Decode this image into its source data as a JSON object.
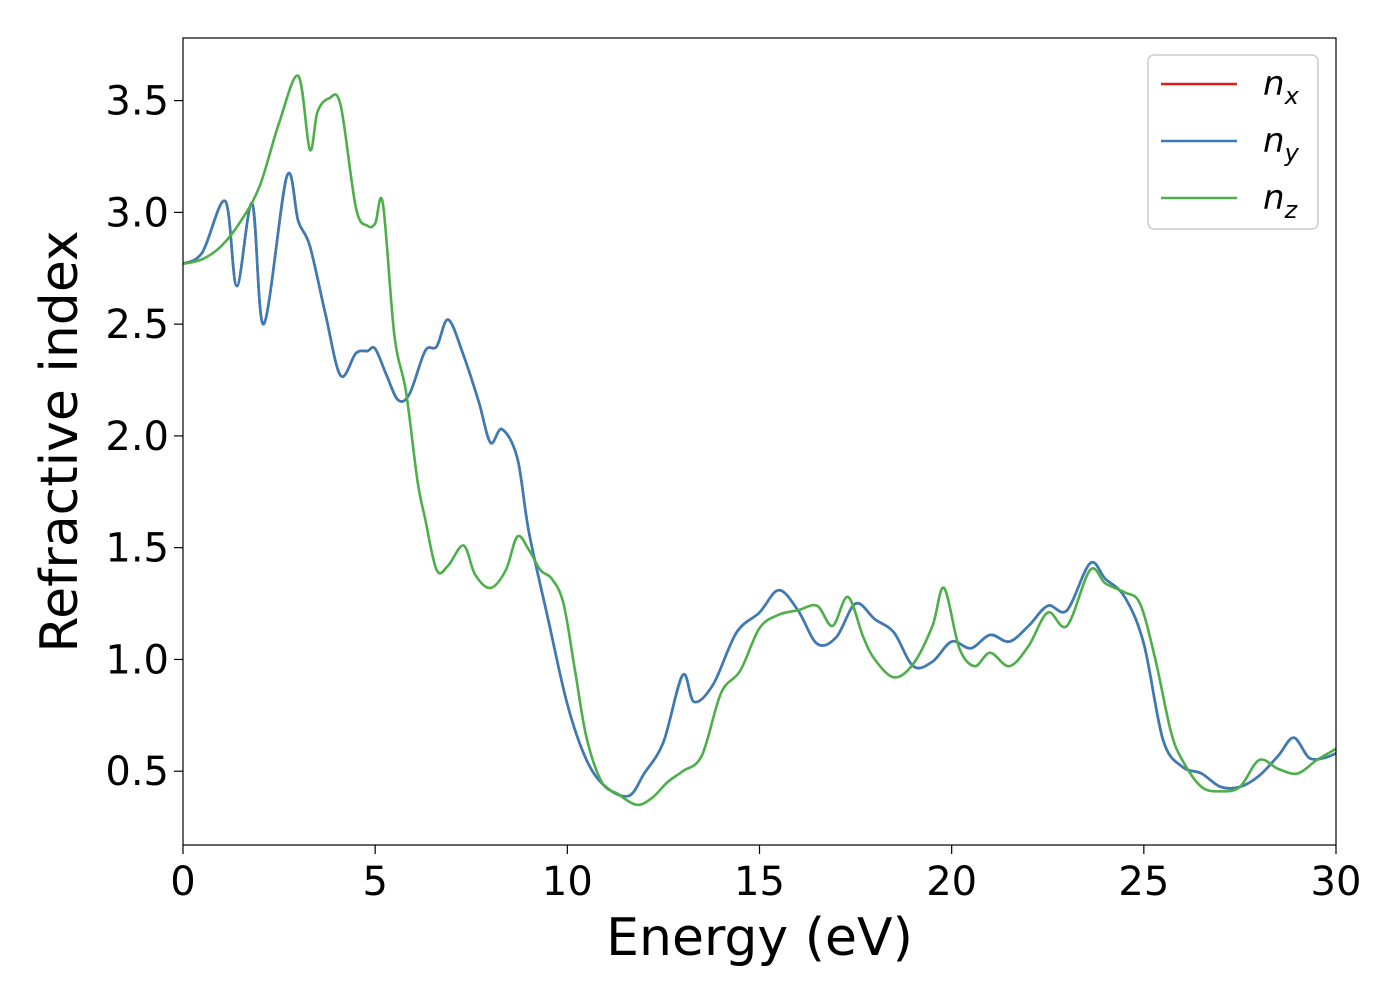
{
  "chart_data": {
    "type": "line",
    "title": "",
    "xlabel": "Energy (eV)",
    "ylabel": "Refractive index",
    "xlim": [
      0,
      30
    ],
    "ylim": [
      0.17,
      3.78
    ],
    "xticks": [
      0,
      5,
      10,
      15,
      20,
      25,
      30
    ],
    "yticks": [
      0.5,
      1.0,
      1.5,
      2.0,
      2.5,
      3.0,
      3.5
    ],
    "xtick_labels": [
      "0",
      "5",
      "10",
      "15",
      "20",
      "25",
      "30"
    ],
    "ytick_labels": [
      "0.5",
      "1.0",
      "1.5",
      "2.0",
      "2.5",
      "3.0",
      "3.5"
    ],
    "grid": false,
    "legend_position": "top-right",
    "series": [
      {
        "name": "n_x",
        "color": "#e41a1c",
        "x": [
          0,
          0.5,
          1.1,
          1.4,
          1.8,
          2.1,
          2.7,
          3.0,
          3.3,
          3.7,
          4.1,
          4.5,
          4.8,
          5.0,
          5.3,
          5.6,
          5.9,
          6.3,
          6.6,
          6.9,
          7.3,
          7.7,
          8.0,
          8.3,
          8.7,
          9.0,
          9.5,
          10.0,
          10.5,
          11.0,
          11.6,
          12.0,
          12.5,
          13.0,
          13.3,
          13.8,
          14.4,
          15.0,
          15.5,
          16.0,
          16.5,
          17.0,
          17.5,
          18.0,
          18.5,
          19.0,
          19.5,
          20.0,
          20.5,
          21.0,
          21.5,
          22.0,
          22.5,
          23.0,
          23.6,
          24.0,
          24.5,
          25.0,
          25.5,
          26.0,
          26.5,
          27.0,
          27.5,
          28.0,
          28.5,
          28.9,
          29.3,
          29.7,
          30.0
        ],
        "y": [
          2.77,
          2.82,
          3.05,
          2.67,
          3.04,
          2.5,
          3.16,
          2.96,
          2.85,
          2.55,
          2.27,
          2.37,
          2.38,
          2.39,
          2.27,
          2.16,
          2.19,
          2.38,
          2.4,
          2.52,
          2.36,
          2.15,
          1.97,
          2.03,
          1.9,
          1.57,
          1.18,
          0.8,
          0.55,
          0.43,
          0.39,
          0.49,
          0.63,
          0.93,
          0.81,
          0.89,
          1.12,
          1.21,
          1.31,
          1.22,
          1.07,
          1.1,
          1.25,
          1.18,
          1.12,
          0.97,
          0.99,
          1.08,
          1.05,
          1.11,
          1.08,
          1.15,
          1.24,
          1.22,
          1.43,
          1.36,
          1.28,
          1.07,
          0.64,
          0.52,
          0.49,
          0.43,
          0.43,
          0.48,
          0.57,
          0.65,
          0.56,
          0.56,
          0.58
        ]
      },
      {
        "name": "n_y",
        "color": "#377eb8",
        "x": [
          0,
          0.5,
          1.1,
          1.4,
          1.8,
          2.1,
          2.7,
          3.0,
          3.3,
          3.7,
          4.1,
          4.5,
          4.8,
          5.0,
          5.3,
          5.6,
          5.9,
          6.3,
          6.6,
          6.9,
          7.3,
          7.7,
          8.0,
          8.3,
          8.7,
          9.0,
          9.5,
          10.0,
          10.5,
          11.0,
          11.6,
          12.0,
          12.5,
          13.0,
          13.3,
          13.8,
          14.4,
          15.0,
          15.5,
          16.0,
          16.5,
          17.0,
          17.5,
          18.0,
          18.5,
          19.0,
          19.5,
          20.0,
          20.5,
          21.0,
          21.5,
          22.0,
          22.5,
          23.0,
          23.6,
          24.0,
          24.5,
          25.0,
          25.5,
          26.0,
          26.5,
          27.0,
          27.5,
          28.0,
          28.5,
          28.9,
          29.3,
          29.7,
          30.0
        ],
        "y": [
          2.77,
          2.82,
          3.05,
          2.67,
          3.04,
          2.5,
          3.16,
          2.96,
          2.85,
          2.55,
          2.27,
          2.37,
          2.38,
          2.39,
          2.27,
          2.16,
          2.19,
          2.38,
          2.4,
          2.52,
          2.36,
          2.15,
          1.97,
          2.03,
          1.9,
          1.57,
          1.18,
          0.8,
          0.55,
          0.43,
          0.39,
          0.49,
          0.63,
          0.93,
          0.81,
          0.89,
          1.12,
          1.21,
          1.31,
          1.22,
          1.07,
          1.1,
          1.25,
          1.18,
          1.12,
          0.97,
          0.99,
          1.08,
          1.05,
          1.11,
          1.08,
          1.15,
          1.24,
          1.22,
          1.43,
          1.36,
          1.28,
          1.07,
          0.64,
          0.52,
          0.49,
          0.43,
          0.43,
          0.48,
          0.57,
          0.65,
          0.56,
          0.56,
          0.58
        ]
      },
      {
        "name": "n_z",
        "color": "#4daf4a",
        "x": [
          0,
          0.5,
          1.0,
          1.5,
          2.0,
          2.5,
          3.0,
          3.3,
          3.5,
          3.8,
          4.1,
          4.5,
          4.8,
          5.0,
          5.2,
          5.5,
          5.8,
          6.1,
          6.3,
          6.6,
          6.9,
          7.3,
          7.6,
          8.0,
          8.4,
          8.7,
          9.0,
          9.3,
          9.6,
          9.9,
          10.2,
          10.5,
          10.9,
          11.3,
          11.8,
          12.2,
          12.6,
          13.0,
          13.5,
          14.0,
          14.5,
          15.0,
          15.5,
          16.0,
          16.5,
          16.9,
          17.3,
          17.7,
          18.0,
          18.5,
          19.0,
          19.5,
          19.8,
          20.2,
          20.6,
          21.0,
          21.5,
          22.0,
          22.5,
          23.0,
          23.6,
          24.0,
          24.5,
          24.9,
          25.3,
          25.7,
          26.0,
          26.5,
          27.0,
          27.5,
          28.0,
          28.5,
          29.0,
          29.5,
          30.0
        ],
        "y": [
          2.77,
          2.79,
          2.85,
          2.96,
          3.12,
          3.4,
          3.61,
          3.28,
          3.45,
          3.51,
          3.48,
          3.02,
          2.94,
          2.95,
          3.04,
          2.45,
          2.2,
          1.8,
          1.63,
          1.4,
          1.42,
          1.51,
          1.38,
          1.32,
          1.4,
          1.55,
          1.49,
          1.4,
          1.36,
          1.25,
          0.95,
          0.65,
          0.45,
          0.4,
          0.35,
          0.38,
          0.45,
          0.5,
          0.57,
          0.85,
          0.95,
          1.14,
          1.2,
          1.22,
          1.24,
          1.15,
          1.28,
          1.1,
          1.0,
          0.92,
          0.98,
          1.15,
          1.32,
          1.05,
          0.97,
          1.03,
          0.97,
          1.06,
          1.21,
          1.15,
          1.4,
          1.34,
          1.3,
          1.25,
          1.0,
          0.68,
          0.55,
          0.43,
          0.41,
          0.43,
          0.55,
          0.51,
          0.49,
          0.55,
          0.6
        ]
      }
    ]
  }
}
